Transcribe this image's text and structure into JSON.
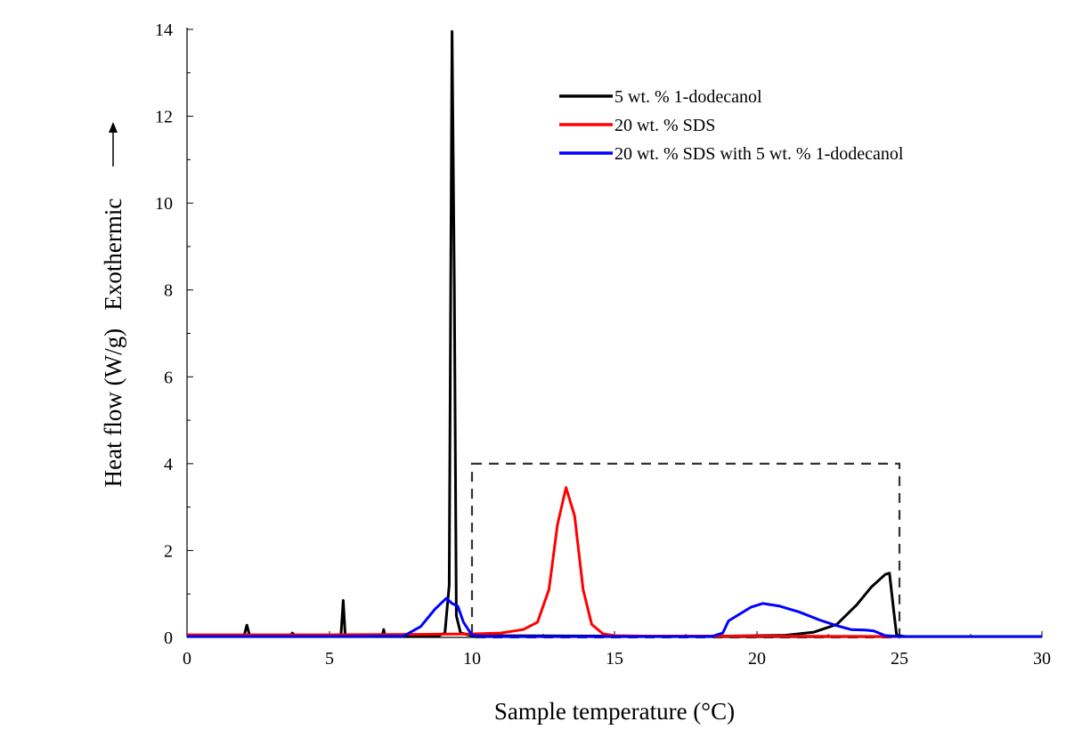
{
  "chart_data": {
    "type": "line",
    "xlabel": "Sample temperature (°C)",
    "ylabel": "Heat flow (W/g)   Exothermic",
    "xlim": [
      0,
      30
    ],
    "ylim": [
      0,
      14
    ],
    "x_ticks": [
      0,
      5,
      10,
      15,
      20,
      25,
      30
    ],
    "y_ticks": [
      0,
      2,
      4,
      6,
      8,
      10,
      12,
      14
    ],
    "legend_position": "top-right",
    "annotations": [
      {
        "type": "dashed-rectangle",
        "x_range": [
          10,
          25
        ],
        "y_range": [
          0,
          4
        ]
      },
      {
        "type": "arrow",
        "direction": "up",
        "meaning": "exothermic direction"
      }
    ],
    "series": [
      {
        "name": "5  wt. % 1-dodecanol",
        "color": "#000000",
        "points": [
          [
            0,
            0.03
          ],
          [
            2.0,
            0.03
          ],
          [
            2.1,
            0.28
          ],
          [
            2.2,
            0.03
          ],
          [
            3.6,
            0.03
          ],
          [
            3.7,
            0.1
          ],
          [
            3.8,
            0.03
          ],
          [
            5.4,
            0.03
          ],
          [
            5.48,
            0.85
          ],
          [
            5.55,
            0.05
          ],
          [
            5.7,
            0.03
          ],
          [
            6.85,
            0.03
          ],
          [
            6.9,
            0.18
          ],
          [
            6.95,
            0.03
          ],
          [
            8.8,
            0.03
          ],
          [
            9.05,
            0.1
          ],
          [
            9.2,
            1.2
          ],
          [
            9.3,
            13.95
          ],
          [
            9.38,
            8.0
          ],
          [
            9.45,
            0.5
          ],
          [
            9.6,
            0.1
          ],
          [
            10.0,
            0.04
          ],
          [
            15.0,
            0.03
          ],
          [
            19.0,
            0.03
          ],
          [
            21.0,
            0.05
          ],
          [
            22.0,
            0.12
          ],
          [
            22.8,
            0.3
          ],
          [
            23.5,
            0.75
          ],
          [
            24.0,
            1.15
          ],
          [
            24.5,
            1.45
          ],
          [
            24.65,
            1.48
          ],
          [
            24.8,
            0.6
          ],
          [
            24.9,
            0.05
          ],
          [
            25.2,
            0.02
          ],
          [
            30,
            0.02
          ]
        ]
      },
      {
        "name": "20 wt. % SDS",
        "color": "#ff0000",
        "points": [
          [
            0,
            0.06
          ],
          [
            5.0,
            0.06
          ],
          [
            8.0,
            0.07
          ],
          [
            10.0,
            0.08
          ],
          [
            11.0,
            0.1
          ],
          [
            11.8,
            0.18
          ],
          [
            12.3,
            0.35
          ],
          [
            12.7,
            1.1
          ],
          [
            13.0,
            2.6
          ],
          [
            13.3,
            3.45
          ],
          [
            13.6,
            2.8
          ],
          [
            13.9,
            1.1
          ],
          [
            14.2,
            0.3
          ],
          [
            14.6,
            0.08
          ],
          [
            15.0,
            0.04
          ],
          [
            16.0,
            0.03
          ],
          [
            20.0,
            0.03
          ],
          [
            25.0,
            0.02
          ],
          [
            30,
            0.02
          ]
        ]
      },
      {
        "name": "20 wt. % SDS with 5 wt. % 1-dodecanol",
        "color": "#0000ff",
        "points": [
          [
            0,
            0.02
          ],
          [
            5.0,
            0.02
          ],
          [
            7.6,
            0.03
          ],
          [
            8.2,
            0.25
          ],
          [
            8.7,
            0.65
          ],
          [
            9.1,
            0.9
          ],
          [
            9.3,
            0.78
          ],
          [
            9.5,
            0.72
          ],
          [
            9.7,
            0.35
          ],
          [
            10.0,
            0.05
          ],
          [
            10.5,
            0.02
          ],
          [
            15.0,
            0.02
          ],
          [
            18.4,
            0.02
          ],
          [
            18.8,
            0.1
          ],
          [
            19.0,
            0.38
          ],
          [
            19.3,
            0.5
          ],
          [
            19.8,
            0.7
          ],
          [
            20.2,
            0.78
          ],
          [
            20.8,
            0.72
          ],
          [
            21.5,
            0.58
          ],
          [
            22.2,
            0.4
          ],
          [
            22.8,
            0.27
          ],
          [
            23.3,
            0.18
          ],
          [
            23.8,
            0.17
          ],
          [
            24.1,
            0.15
          ],
          [
            24.5,
            0.04
          ],
          [
            25.0,
            0.02
          ],
          [
            30,
            0.02
          ]
        ]
      }
    ]
  }
}
